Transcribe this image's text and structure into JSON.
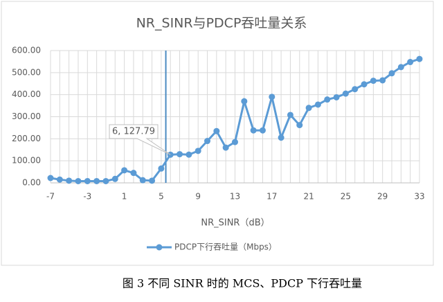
{
  "chart_data": {
    "type": "line",
    "title": "NR_SINR与PDCP吞吐量关系",
    "x_label": "NR_SINR（dB）",
    "x": [
      -7,
      -6,
      -5,
      -4,
      -3,
      -2,
      -1,
      0,
      1,
      2,
      3,
      4,
      5,
      6,
      7,
      8,
      9,
      10,
      11,
      12,
      13,
      14,
      15,
      16,
      17,
      18,
      19,
      20,
      21,
      22,
      23,
      24,
      25,
      26,
      27,
      28,
      29,
      30,
      31,
      32,
      33
    ],
    "series": [
      {
        "name": "PDCP下行吞吐量（Mbps）",
        "color": "#5b9bd5",
        "values": [
          22,
          15,
          10,
          8,
          8,
          8,
          8,
          18,
          57,
          45,
          12,
          10,
          65,
          127.79,
          130,
          128,
          145,
          190,
          235,
          160,
          185,
          370,
          238,
          238,
          390,
          205,
          308,
          262,
          340,
          355,
          378,
          388,
          405,
          425,
          447,
          463,
          465,
          497,
          525,
          548,
          562
        ]
      }
    ],
    "xlim": [
      -7,
      33
    ],
    "xticks": [
      -7,
      -3,
      1,
      5,
      9,
      13,
      17,
      21,
      25,
      29,
      33
    ],
    "ylim": [
      0,
      600
    ],
    "yticks": [
      {
        "value": 0,
        "label": "0.00"
      },
      {
        "value": 100,
        "label": "100.00"
      },
      {
        "value": 200,
        "label": "200.00"
      },
      {
        "value": 300,
        "label": "300.00"
      },
      {
        "value": 400,
        "label": "400.00"
      },
      {
        "value": 500,
        "label": "500.00"
      },
      {
        "value": 600,
        "label": "600.00"
      }
    ],
    "grid": true,
    "marker_line_x": 5.5,
    "annotation": "6, 127.79",
    "legend": "bottom",
    "caption": "图 3    不同 SINR 时的 MCS、PDCP 下行吞吐量"
  }
}
